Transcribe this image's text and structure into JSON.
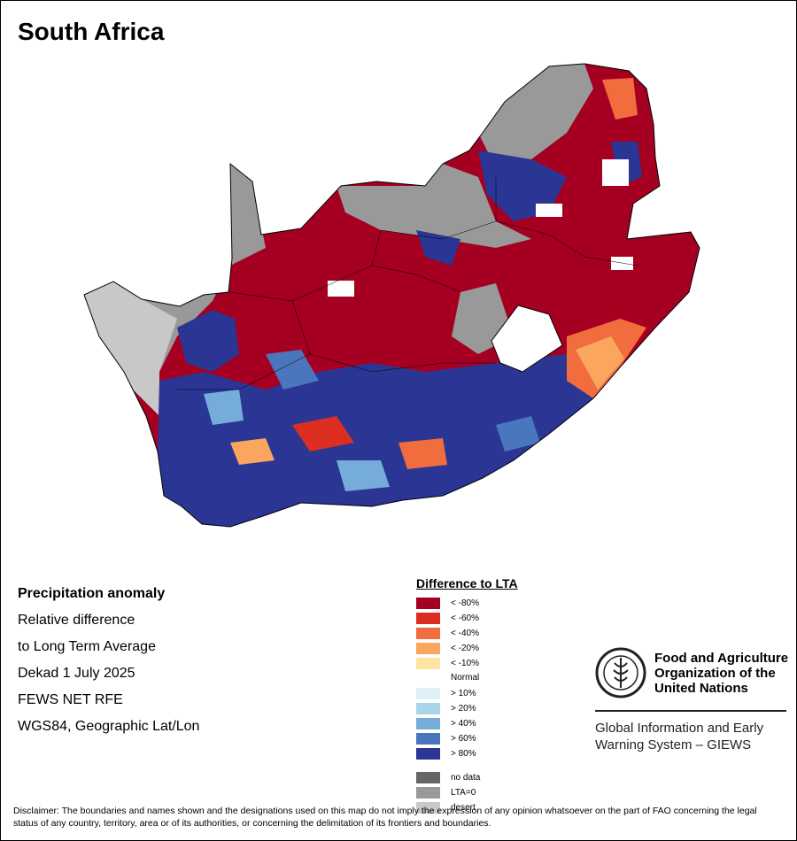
{
  "title": "South Africa",
  "info": {
    "line1": "Precipitation anomaly",
    "line2": "Relative difference",
    "line3": "to Long Term Average",
    "line4": "Dekad 1 July 2025",
    "line5": "FEWS NET RFE",
    "line6": "WGS84, Geographic Lat/Lon"
  },
  "legend": {
    "title": "Difference to LTA",
    "items": [
      {
        "label": "< -80%",
        "color": "#a50021"
      },
      {
        "label": "< -60%",
        "color": "#dc2f22"
      },
      {
        "label": "< -40%",
        "color": "#f26d3d"
      },
      {
        "label": "< -20%",
        "color": "#fba65f"
      },
      {
        "label": "< -10%",
        "color": "#ffe3a0"
      },
      {
        "label": "Normal",
        "color": "#ffffff"
      },
      {
        "label": "> 10%",
        "color": "#dff0f7"
      },
      {
        "label": "> 20%",
        "color": "#a9d4ea"
      },
      {
        "label": "> 40%",
        "color": "#76acd9"
      },
      {
        "label": "> 60%",
        "color": "#4a76bd"
      },
      {
        "label": "> 80%",
        "color": "#2b3593"
      }
    ],
    "extra": [
      {
        "label": "no data",
        "color": "#666666"
      },
      {
        "label": "LTA=0",
        "color": "#999999"
      },
      {
        "label": "desert",
        "color": "#c8c8c8"
      }
    ]
  },
  "fao": {
    "emblem_text": "FIAT PANIS",
    "name_line1": "Food and Agriculture",
    "name_line2": "Organization of the",
    "name_line3": "United Nations",
    "sub_line1": "Global Information and Early",
    "sub_line2": "Warning System – GIEWS"
  },
  "disclaimer": "Disclaimer: The boundaries and names shown and the designations used on this map do not imply the expression of any opinion whatsoever on the part of FAO concerning the legal status of any country, territory, area or of its authorities, or concerning the delimitation of its frontiers and boundaries."
}
